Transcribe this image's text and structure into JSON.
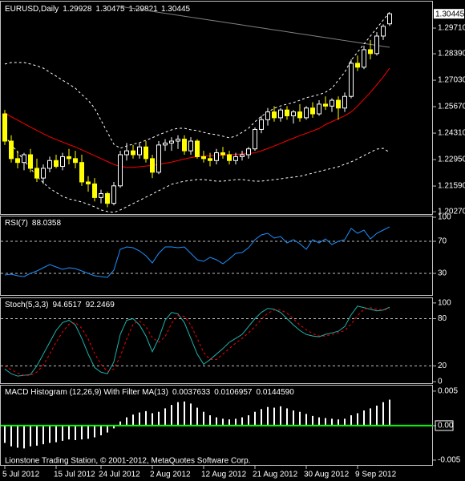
{
  "chart_data": [
    {
      "type": "candlestick",
      "title": "EURUSD,Daily",
      "ylim": [
        1.2015,
        1.3103
      ],
      "yticks": [
        {
          "value": 1.2971,
          "label": "1.29710"
        },
        {
          "value": 1.2839,
          "label": "1.28390"
        },
        {
          "value": 1.2703,
          "label": "1.27030"
        },
        {
          "value": 1.2567,
          "label": "1.25670"
        },
        {
          "value": 1.2431,
          "label": "1.24310"
        },
        {
          "value": 1.2295,
          "label": "1.22950"
        },
        {
          "value": 1.2159,
          "label": "1.21590"
        },
        {
          "value": 1.2027,
          "label": "1.20270"
        }
      ],
      "up_color": "#000000",
      "down_color": "#ffff00",
      "wick_color": "#ffffff",
      "ohlc": [
        [
          1.253,
          1.255,
          1.237,
          1.239
        ],
        [
          1.239,
          1.242,
          1.228,
          1.23
        ],
        [
          1.23,
          1.234,
          1.225,
          1.228
        ],
        [
          1.228,
          1.233,
          1.224,
          1.232
        ],
        [
          1.232,
          1.235,
          1.223,
          1.225
        ],
        [
          1.225,
          1.23,
          1.218,
          1.22
        ],
        [
          1.22,
          1.227,
          1.217,
          1.225
        ],
        [
          1.225,
          1.231,
          1.223,
          1.229
        ],
        [
          1.229,
          1.232,
          1.225,
          1.226
        ],
        [
          1.226,
          1.233,
          1.224,
          1.231
        ],
        [
          1.231,
          1.235,
          1.227,
          1.23
        ],
        [
          1.23,
          1.234,
          1.225,
          1.228
        ],
        [
          1.228,
          1.232,
          1.216,
          1.218
        ],
        [
          1.218,
          1.221,
          1.213,
          1.217
        ],
        [
          1.217,
          1.22,
          1.208,
          1.21
        ],
        [
          1.21,
          1.214,
          1.207,
          1.212
        ],
        [
          1.212,
          1.213,
          1.205,
          1.207
        ],
        [
          1.207,
          1.218,
          1.206,
          1.216
        ],
        [
          1.216,
          1.234,
          1.215,
          1.232
        ],
        [
          1.232,
          1.238,
          1.229,
          1.234
        ],
        [
          1.234,
          1.237,
          1.23,
          1.232
        ],
        [
          1.232,
          1.238,
          1.23,
          1.236
        ],
        [
          1.236,
          1.239,
          1.228,
          1.23
        ],
        [
          1.23,
          1.232,
          1.22,
          1.223
        ],
        [
          1.223,
          1.239,
          1.222,
          1.237
        ],
        [
          1.237,
          1.24,
          1.234,
          1.238
        ],
        [
          1.238,
          1.241,
          1.234,
          1.239
        ],
        [
          1.239,
          1.242,
          1.235,
          1.24
        ],
        [
          1.24,
          1.242,
          1.232,
          1.234
        ],
        [
          1.234,
          1.241,
          1.232,
          1.239
        ],
        [
          1.239,
          1.24,
          1.23,
          1.231
        ],
        [
          1.231,
          1.234,
          1.228,
          1.23
        ],
        [
          1.23,
          1.233,
          1.226,
          1.229
        ],
        [
          1.229,
          1.235,
          1.227,
          1.233
        ],
        [
          1.233,
          1.236,
          1.23,
          1.232
        ],
        [
          1.232,
          1.234,
          1.227,
          1.229
        ],
        [
          1.229,
          1.233,
          1.227,
          1.231
        ],
        [
          1.231,
          1.234,
          1.229,
          1.232
        ],
        [
          1.232,
          1.236,
          1.23,
          1.235
        ],
        [
          1.235,
          1.246,
          1.234,
          1.245
        ],
        [
          1.245,
          1.252,
          1.243,
          1.25
        ],
        [
          1.25,
          1.256,
          1.247,
          1.254
        ],
        [
          1.254,
          1.257,
          1.249,
          1.251
        ],
        [
          1.251,
          1.256,
          1.249,
          1.255
        ],
        [
          1.255,
          1.257,
          1.25,
          1.252
        ],
        [
          1.252,
          1.255,
          1.248,
          1.254
        ],
        [
          1.254,
          1.258,
          1.249,
          1.251
        ],
        [
          1.251,
          1.257,
          1.25,
          1.256
        ],
        [
          1.256,
          1.259,
          1.251,
          1.253
        ],
        [
          1.253,
          1.26,
          1.252,
          1.258
        ],
        [
          1.258,
          1.262,
          1.255,
          1.257
        ],
        [
          1.257,
          1.261,
          1.254,
          1.26
        ],
        [
          1.26,
          1.262,
          1.25,
          1.256
        ],
        [
          1.256,
          1.264,
          1.254,
          1.262
        ],
        [
          1.262,
          1.281,
          1.261,
          1.279
        ],
        [
          1.279,
          1.283,
          1.275,
          1.277
        ],
        [
          1.277,
          1.288,
          1.276,
          1.286
        ],
        [
          1.286,
          1.291,
          1.281,
          1.284
        ],
        [
          1.284,
          1.295,
          1.283,
          1.293
        ],
        [
          1.293,
          1.299,
          1.291,
          1.298
        ],
        [
          1.29928,
          1.30475,
          1.29821,
          1.30445
        ]
      ],
      "overlays": [
        {
          "color": "#808080",
          "values": [
            null,
            null,
            null,
            null,
            null,
            null,
            null,
            null,
            null,
            null,
            null,
            null,
            null,
            null,
            null,
            null,
            null,
            null,
            1.3082,
            1.3077,
            1.3072,
            1.3067,
            1.3062,
            1.3057,
            1.3052,
            1.3047,
            1.3042,
            1.3037,
            1.3032,
            1.3027,
            1.3022,
            1.3017,
            1.3012,
            1.3007,
            1.3002,
            1.2997,
            1.2992,
            1.2987,
            1.2982,
            1.2977,
            1.2972,
            1.2967,
            1.2962,
            1.2957,
            1.2952,
            1.2947,
            1.2942,
            1.2937,
            1.2932,
            1.2927,
            1.2922,
            1.2917,
            1.2912,
            1.2907,
            1.2902,
            1.2897,
            1.2892,
            1.2887,
            1.2882,
            1.2877,
            1.2872
          ]
        },
        {
          "color": "#ff0000",
          "values": [
            1.2535,
            1.2515,
            1.2498,
            1.248,
            1.2462,
            1.2445,
            1.2428,
            1.2412,
            1.2398,
            1.2385,
            1.2372,
            1.236,
            1.2345,
            1.233,
            1.2315,
            1.23,
            1.2285,
            1.227,
            1.226,
            1.2255,
            1.2255,
            1.2258,
            1.2262,
            1.2265,
            1.227,
            1.2276,
            1.2282,
            1.229,
            1.2298,
            1.2305,
            1.231,
            1.2312,
            1.2314,
            1.2316,
            1.2318,
            1.232,
            1.2322,
            1.2324,
            1.2326,
            1.233,
            1.234,
            1.2352,
            1.2365,
            1.2378,
            1.2392,
            1.2405,
            1.2418,
            1.243,
            1.2442,
            1.2455,
            1.2475,
            1.249,
            1.2505,
            1.252,
            1.254,
            1.257,
            1.2605,
            1.264,
            1.268,
            1.272,
            1.2765
          ]
        },
        {
          "color": "#ffffff",
          "dashed": true,
          "values": [
            1.2786,
            1.2794,
            1.2794,
            1.2794,
            1.2786,
            1.2777,
            1.2765,
            1.2744,
            1.2724,
            1.2703,
            1.2683,
            1.2662,
            1.2629,
            1.26,
            1.2559,
            1.2497,
            1.2435,
            1.2374,
            1.2353,
            1.2365,
            1.2374,
            1.2382,
            1.2394,
            1.2407,
            1.2423,
            1.2435,
            1.2448,
            1.2456,
            1.2456,
            1.2448,
            1.2444,
            1.2435,
            1.2427,
            1.2423,
            1.2415,
            1.2407,
            1.2415,
            1.2435,
            1.2456,
            1.2489,
            1.2518,
            1.2538,
            1.2559,
            1.2571,
            1.258,
            1.2588,
            1.26,
            1.2613,
            1.2621,
            1.2629,
            1.2641,
            1.2662,
            1.2703,
            1.2744,
            1.2806,
            1.2847,
            1.2889,
            1.293,
            1.2971,
            1.3012,
            1.3053
          ]
        },
        {
          "color": "#ffffff",
          "dashed": true,
          "values": [
            1.2415,
            1.2374,
            1.2332,
            1.2291,
            1.225,
            1.2209,
            1.2176,
            1.2147,
            1.2126,
            1.2106,
            1.2093,
            1.2085,
            1.2077,
            1.2065,
            1.2052,
            1.2036,
            1.2028,
            1.2023,
            1.2036,
            1.2052,
            1.2069,
            1.2085,
            1.2102,
            1.2118,
            1.2135,
            1.2151,
            1.2168,
            1.2176,
            1.2184,
            1.2188,
            1.2192,
            1.2192,
            1.2188,
            1.2184,
            1.2184,
            1.2188,
            1.2192,
            1.2192,
            1.2188,
            1.2184,
            1.2184,
            1.2188,
            1.2192,
            1.2196,
            1.2201,
            1.2205,
            1.2209,
            1.2217,
            1.2225,
            1.2234,
            1.2242,
            1.225,
            1.2258,
            1.2271,
            1.2283,
            1.2299,
            1.2316,
            1.2332,
            1.2349,
            1.2353,
            1.2332
          ]
        }
      ]
    },
    {
      "type": "line",
      "title": "RSI(7)",
      "ylim": [
        3,
        101
      ],
      "yticks": [
        100,
        70,
        30
      ],
      "level_ticks": [
        1,
        2
      ],
      "series": [
        {
          "color": "#1e90ff",
          "values": [
            28,
            29,
            27,
            26,
            30,
            33,
            37,
            41,
            38,
            35,
            37,
            36,
            33,
            30,
            27,
            26,
            25,
            34,
            60,
            63,
            62,
            58,
            52,
            43,
            55,
            63,
            63,
            62,
            63,
            55,
            47,
            45,
            50,
            47,
            42,
            48,
            55,
            56,
            62,
            72,
            78,
            80,
            74,
            76,
            68,
            72,
            67,
            60,
            72,
            68,
            73,
            66,
            70,
            72,
            86,
            80,
            84,
            73,
            80,
            84,
            88.0358
          ]
        }
      ]
    },
    {
      "type": "line",
      "title": "Stoch(5,3,3)",
      "ylim": [
        -2,
        106
      ],
      "yticks": [
        100,
        80,
        20,
        0
      ],
      "level_ticks": [
        1,
        2
      ],
      "series": [
        {
          "color": "#20b2aa",
          "values": [
            16,
            10,
            7,
            8,
            9,
            20,
            35,
            50,
            65,
            75,
            78,
            72,
            55,
            35,
            18,
            12,
            10,
            25,
            60,
            78,
            80,
            72,
            58,
            38,
            55,
            78,
            88,
            86,
            75,
            55,
            35,
            22,
            28,
            35,
            42,
            50,
            55,
            60,
            70,
            80,
            88,
            93,
            92,
            88,
            80,
            72,
            65,
            60,
            58,
            57,
            60,
            62,
            64,
            70,
            85,
            96,
            94,
            92,
            90,
            91,
            94.6517
          ]
        },
        {
          "color": "#ff0000",
          "dashed": true,
          "values": [
            20,
            15,
            11,
            8,
            8,
            12,
            21,
            35,
            50,
            63,
            73,
            75,
            68,
            54,
            36,
            22,
            13,
            16,
            32,
            54,
            73,
            77,
            70,
            56,
            50,
            57,
            74,
            84,
            83,
            72,
            55,
            37,
            28,
            28,
            35,
            42,
            49,
            55,
            62,
            70,
            79,
            87,
            91,
            91,
            87,
            80,
            72,
            66,
            61,
            58,
            58,
            60,
            62,
            65,
            73,
            84,
            92,
            94,
            92,
            91,
            92.2469
          ]
        }
      ]
    },
    {
      "type": "bar",
      "title": "MACD Histogram (12,26,9) With Filter MA(13)",
      "readout": [
        "0.0106957",
        "0.0144590"
      ],
      "ylim": [
        -0.0057,
        0.0058
      ],
      "yticks": [
        0.005,
        {
          "value": 0,
          "label": "0.00"
        },
        -0.005
      ],
      "color": "#ffffff",
      "zero_line_color": "#00ff00",
      "values": [
        -0.0025,
        -0.003,
        -0.0032,
        -0.0033,
        -0.003,
        -0.0029,
        -0.0027,
        -0.0025,
        -0.0024,
        -0.0022,
        -0.002,
        -0.0021,
        -0.002,
        -0.0019,
        -0.0017,
        -0.0014,
        -0.001,
        -0.0004,
        0.0006,
        0.0012,
        0.0016,
        0.0019,
        0.0021,
        0.0018,
        0.002,
        0.0025,
        0.003,
        0.0034,
        0.0035,
        0.0032,
        0.0026,
        0.002,
        0.0015,
        0.0012,
        0.001,
        0.0009,
        0.001,
        0.0012,
        0.0015,
        0.002,
        0.0024,
        0.0027,
        0.0026,
        0.0028,
        0.0025,
        0.0022,
        0.002,
        0.0017,
        0.0014,
        0.0012,
        0.0011,
        0.001,
        0.0009,
        0.001,
        0.0015,
        0.0018,
        0.0022,
        0.0025,
        0.0029,
        0.0034,
        0.0037633
      ],
      "watermark": "Lionstone Trading Station, © 2001-2012, MetaQuotes Software Corp.",
      "xticks": [
        {
          "value": 0,
          "label": "5 Jul 2012"
        },
        {
          "value": 8,
          "label": "15 Jul 2012"
        },
        {
          "value": 15,
          "label": "24 Jul 2012"
        },
        {
          "value": 23,
          "label": "2 Aug 2012"
        },
        {
          "value": 31,
          "label": "12 Aug 2012"
        },
        {
          "value": 39,
          "label": "21 Aug 2012"
        },
        {
          "value": 47,
          "label": "30 Aug 2012"
        },
        {
          "value": 55,
          "label": "9 Sep 2012"
        }
      ]
    }
  ]
}
